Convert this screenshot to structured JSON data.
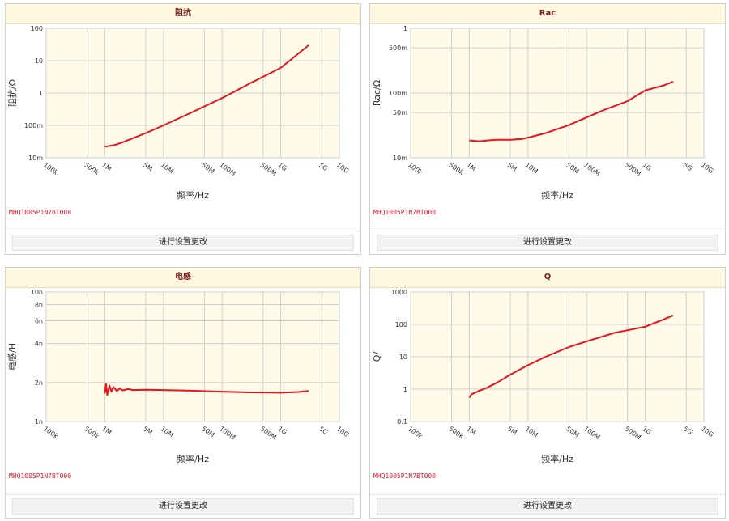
{
  "footer_button_label": "进行设置更改",
  "part_number": "MHQ1005P1N7BT000",
  "chart_data": [
    {
      "type": "line",
      "title": "阻抗",
      "xlabel": "频率/Hz",
      "ylabel": "阻抗/Ω",
      "x_scale": "log",
      "y_scale": "log",
      "xlim": [
        100000,
        10000000000
      ],
      "ylim": [
        0.01,
        100
      ],
      "x_ticks": [
        {
          "v": 100000,
          "label": "100k"
        },
        {
          "v": 500000,
          "label": "500k"
        },
        {
          "v": 1000000,
          "label": "1M"
        },
        {
          "v": 5000000,
          "label": "5M"
        },
        {
          "v": 10000000,
          "label": "10M"
        },
        {
          "v": 50000000,
          "label": "50M"
        },
        {
          "v": 100000000,
          "label": "100M"
        },
        {
          "v": 500000000,
          "label": "500M"
        },
        {
          "v": 1000000000,
          "label": "1G"
        },
        {
          "v": 5000000000,
          "label": "5G"
        },
        {
          "v": 10000000000,
          "label": "10G"
        }
      ],
      "y_ticks": [
        {
          "v": 0.01,
          "label": "10m"
        },
        {
          "v": 0.1,
          "label": "100m"
        },
        {
          "v": 1,
          "label": "1"
        },
        {
          "v": 10,
          "label": "10"
        },
        {
          "v": 100,
          "label": "100"
        }
      ],
      "grid": true,
      "series": [
        {
          "color": "#e8141c",
          "x": [
            1000000,
            1500000,
            2000000,
            3000000,
            5000000,
            10000000,
            30000000,
            100000000,
            300000000,
            1000000000,
            3000000000
          ],
          "y": [
            0.022,
            0.025,
            0.03,
            0.04,
            0.058,
            0.1,
            0.25,
            0.7,
            2.0,
            6.0,
            30
          ]
        }
      ]
    },
    {
      "type": "line",
      "title": "Rac",
      "xlabel": "频率/Hz",
      "ylabel": "Rac/Ω",
      "x_scale": "log",
      "y_scale": "log",
      "xlim": [
        100000,
        10000000000
      ],
      "ylim": [
        0.01,
        1
      ],
      "x_ticks": [
        {
          "v": 100000,
          "label": "100k"
        },
        {
          "v": 500000,
          "label": "500k"
        },
        {
          "v": 1000000,
          "label": "1M"
        },
        {
          "v": 5000000,
          "label": "5M"
        },
        {
          "v": 10000000,
          "label": "10M"
        },
        {
          "v": 50000000,
          "label": "50M"
        },
        {
          "v": 100000000,
          "label": "100M"
        },
        {
          "v": 500000000,
          "label": "500M"
        },
        {
          "v": 1000000000,
          "label": "1G"
        },
        {
          "v": 5000000000,
          "label": "5G"
        },
        {
          "v": 10000000000,
          "label": "10G"
        }
      ],
      "y_ticks": [
        {
          "v": 0.01,
          "label": "10m"
        },
        {
          "v": 0.05,
          "label": "50m"
        },
        {
          "v": 0.1,
          "label": "100m"
        },
        {
          "v": 0.5,
          "label": "500m"
        },
        {
          "v": 1,
          "label": "1"
        }
      ],
      "grid": true,
      "series": [
        {
          "color": "#e8141c",
          "x": [
            1000000,
            1500000,
            2000000,
            3000000,
            5000000,
            8000000,
            10000000,
            20000000,
            50000000,
            100000000,
            200000000,
            500000000,
            1000000000,
            2000000000,
            3000000000
          ],
          "y": [
            0.0185,
            0.018,
            0.0185,
            0.019,
            0.019,
            0.0195,
            0.0205,
            0.024,
            0.032,
            0.042,
            0.055,
            0.075,
            0.11,
            0.13,
            0.15
          ]
        }
      ]
    },
    {
      "type": "line",
      "title": "电感",
      "xlabel": "频率/Hz",
      "ylabel": "电感/H",
      "x_scale": "log",
      "y_scale": "log",
      "xlim": [
        100000,
        10000000000
      ],
      "ylim": [
        1e-09,
        1e-08
      ],
      "x_ticks": [
        {
          "v": 100000,
          "label": "100k"
        },
        {
          "v": 500000,
          "label": "500k"
        },
        {
          "v": 1000000,
          "label": "1M"
        },
        {
          "v": 5000000,
          "label": "5M"
        },
        {
          "v": 10000000,
          "label": "10M"
        },
        {
          "v": 50000000,
          "label": "50M"
        },
        {
          "v": 100000000,
          "label": "100M"
        },
        {
          "v": 500000000,
          "label": "500M"
        },
        {
          "v": 1000000000,
          "label": "1G"
        },
        {
          "v": 5000000000,
          "label": "5G"
        },
        {
          "v": 10000000000,
          "label": "10G"
        }
      ],
      "y_ticks": [
        {
          "v": 1e-09,
          "label": "1n"
        },
        {
          "v": 2e-09,
          "label": "2n"
        },
        {
          "v": 4e-09,
          "label": "4n"
        },
        {
          "v": 6e-09,
          "label": "6n"
        },
        {
          "v": 8e-09,
          "label": "8n"
        },
        {
          "v": 1e-08,
          "label": "10n"
        }
      ],
      "grid": true,
      "series": [
        {
          "color": "#e8141c",
          "x": [
            1000000,
            1050000,
            1100000,
            1200000,
            1300000,
            1400000,
            1600000,
            1800000,
            2000000,
            2500000,
            3000000,
            5000000,
            10000000,
            30000000,
            100000000,
            300000000,
            1000000000,
            2000000000,
            3000000000
          ],
          "y": [
            1.65e-09,
            1.95e-09,
            1.6e-09,
            1.9e-09,
            1.7e-09,
            1.85e-09,
            1.72e-09,
            1.8e-09,
            1.74e-09,
            1.78e-09,
            1.75e-09,
            1.76e-09,
            1.75e-09,
            1.73e-09,
            1.7e-09,
            1.68e-09,
            1.67e-09,
            1.69e-09,
            1.72e-09
          ]
        }
      ]
    },
    {
      "type": "line",
      "title": "Q",
      "xlabel": "频率/Hz",
      "ylabel": "Q/",
      "x_scale": "log",
      "y_scale": "log",
      "xlim": [
        100000,
        10000000000
      ],
      "ylim": [
        0.1,
        1000
      ],
      "x_ticks": [
        {
          "v": 100000,
          "label": "100k"
        },
        {
          "v": 500000,
          "label": "500k"
        },
        {
          "v": 1000000,
          "label": "1M"
        },
        {
          "v": 5000000,
          "label": "5M"
        },
        {
          "v": 10000000,
          "label": "10M"
        },
        {
          "v": 50000000,
          "label": "50M"
        },
        {
          "v": 100000000,
          "label": "100M"
        },
        {
          "v": 500000000,
          "label": "500M"
        },
        {
          "v": 1000000000,
          "label": "1G"
        },
        {
          "v": 5000000000,
          "label": "5G"
        },
        {
          "v": 10000000000,
          "label": "10G"
        }
      ],
      "y_ticks": [
        {
          "v": 0.1,
          "label": "0.1"
        },
        {
          "v": 1,
          "label": "1"
        },
        {
          "v": 10,
          "label": "10"
        },
        {
          "v": 100,
          "label": "100"
        },
        {
          "v": 1000,
          "label": "1000"
        }
      ],
      "grid": true,
      "series": [
        {
          "color": "#e8141c",
          "x": [
            1000000,
            1100000,
            1300000,
            1500000,
            2000000,
            3000000,
            5000000,
            10000000,
            20000000,
            50000000,
            100000000,
            300000000,
            1000000000,
            2000000000,
            3000000000
          ],
          "y": [
            0.55,
            0.7,
            0.8,
            0.9,
            1.1,
            1.6,
            2.8,
            5.5,
            10,
            20,
            30,
            55,
            85,
            140,
            190
          ]
        }
      ]
    }
  ]
}
